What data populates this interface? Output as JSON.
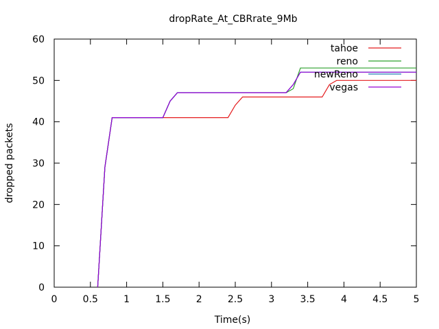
{
  "chart_data": {
    "type": "line",
    "title": "dropRate_At_CBRrate_9Mb",
    "xlabel": "Time(s)",
    "ylabel": "dropped packets",
    "xlim": [
      0,
      5
    ],
    "ylim": [
      0,
      60
    ],
    "xticks": [
      "0",
      "0.5",
      "1",
      "1.5",
      "2",
      "2.5",
      "3",
      "3.5",
      "4",
      "4.5",
      "5"
    ],
    "yticks": [
      "0",
      "10",
      "20",
      "30",
      "40",
      "50",
      "60"
    ],
    "grid": false,
    "legend_position": "top-right",
    "series": [
      {
        "name": "tahoe",
        "color": "#e41a1c",
        "points": [
          [
            0.6,
            0
          ],
          [
            0.7,
            29
          ],
          [
            0.8,
            41
          ],
          [
            1.5,
            41
          ],
          [
            2.4,
            41
          ],
          [
            2.5,
            44
          ],
          [
            2.6,
            46
          ],
          [
            3.7,
            46
          ],
          [
            3.8,
            49
          ],
          [
            3.9,
            50
          ],
          [
            5,
            50
          ]
        ]
      },
      {
        "name": "reno",
        "color": "#2ca02c",
        "points": [
          [
            0.6,
            0
          ],
          [
            0.7,
            29
          ],
          [
            0.8,
            41
          ],
          [
            1.5,
            41
          ],
          [
            1.6,
            45
          ],
          [
            1.7,
            47
          ],
          [
            3.2,
            47
          ],
          [
            3.3,
            48
          ],
          [
            3.4,
            53
          ],
          [
            5,
            53
          ]
        ]
      },
      {
        "name": "newReno",
        "color": "#1f77b4",
        "points": [
          [
            0.6,
            0
          ],
          [
            0.7,
            29
          ],
          [
            0.8,
            41
          ],
          [
            1.5,
            41
          ],
          [
            1.6,
            45
          ],
          [
            1.7,
            47
          ],
          [
            3.2,
            47
          ],
          [
            3.3,
            49
          ],
          [
            3.4,
            52
          ],
          [
            5,
            52
          ]
        ]
      },
      {
        "name": "vegas",
        "color": "#9400d3",
        "points": [
          [
            0.6,
            0
          ],
          [
            0.7,
            29
          ],
          [
            0.8,
            41
          ],
          [
            1.5,
            41
          ],
          [
            1.6,
            45
          ],
          [
            1.7,
            47
          ],
          [
            3.2,
            47
          ],
          [
            3.3,
            49
          ],
          [
            3.4,
            52
          ],
          [
            5,
            52
          ]
        ]
      }
    ]
  }
}
